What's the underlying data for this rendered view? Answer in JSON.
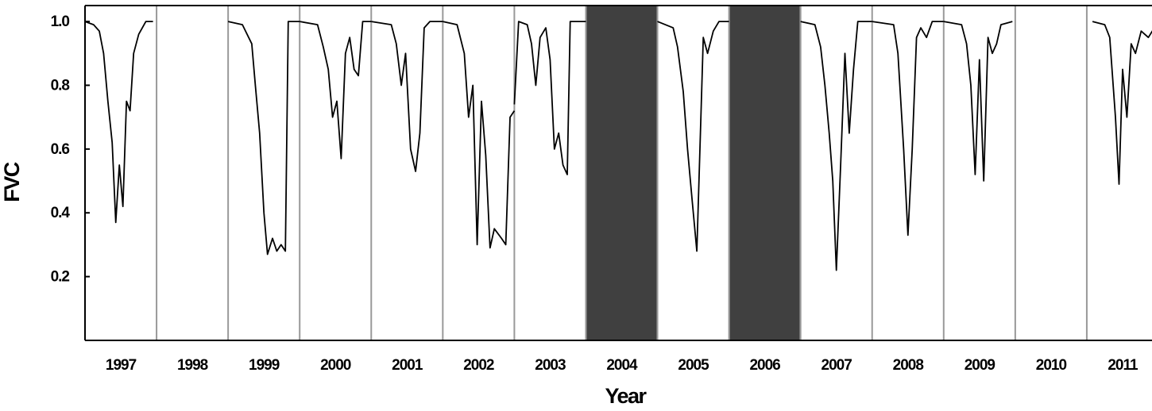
{
  "chart_data": {
    "type": "line",
    "title": "",
    "xlabel": "Year",
    "ylabel": "FVC",
    "categories": [
      "1997",
      "1998",
      "1999",
      "2000",
      "2001",
      "2002",
      "2003",
      "2004",
      "2005",
      "2006",
      "2007",
      "2008",
      "2009",
      "2010",
      "2011"
    ],
    "ylim": [
      0,
      1.05
    ],
    "yticks": [
      0.2,
      0.4,
      0.6,
      0.8,
      1.0
    ],
    "ytick_labels": [
      "0.2",
      "0.4",
      "0.6",
      "0.8",
      "1.0"
    ],
    "grid": "vertical separators between years",
    "legend": "none",
    "shaded_years": [
      "2004",
      "2006"
    ],
    "shade_color": "#404040",
    "line_color": "#000000",
    "separator_color": "#999999",
    "series": [
      {
        "values": [
          [
            [
              "1997",
              0.0,
              1.0
            ],
            [
              "1997",
              0.12,
              0.99
            ],
            [
              "1997",
              0.2,
              0.97
            ],
            [
              "1997",
              0.26,
              0.9
            ],
            [
              "1997",
              0.32,
              0.75
            ],
            [
              "1997",
              0.38,
              0.62
            ],
            [
              "1997",
              0.43,
              0.37
            ],
            [
              "1997",
              0.48,
              0.55
            ],
            [
              "1997",
              0.53,
              0.42
            ],
            [
              "1997",
              0.58,
              0.75
            ],
            [
              "1997",
              0.63,
              0.72
            ],
            [
              "1997",
              0.68,
              0.9
            ],
            [
              "1997",
              0.75,
              0.96
            ],
            [
              "1997",
              0.85,
              1.0
            ],
            [
              "1997",
              0.95,
              1.0
            ]
          ],
          [
            [
              "1999",
              0.0,
              1.0
            ],
            [
              "1999",
              0.2,
              0.99
            ],
            [
              "1999",
              0.33,
              0.93
            ],
            [
              "1999",
              0.38,
              0.8
            ],
            [
              "1999",
              0.44,
              0.65
            ],
            [
              "1999",
              0.5,
              0.4
            ],
            [
              "1999",
              0.55,
              0.27
            ],
            [
              "1999",
              0.62,
              0.32
            ],
            [
              "1999",
              0.68,
              0.28
            ],
            [
              "1999",
              0.74,
              0.3
            ],
            [
              "1999",
              0.8,
              0.28
            ],
            [
              "1999",
              0.84,
              1.0
            ],
            [
              "1999",
              1.0,
              1.0
            ]
          ],
          [
            [
              "2000",
              0.0,
              1.0
            ],
            [
              "2000",
              0.25,
              0.99
            ],
            [
              "2000",
              0.33,
              0.92
            ],
            [
              "2000",
              0.4,
              0.85
            ],
            [
              "2000",
              0.46,
              0.7
            ],
            [
              "2000",
              0.52,
              0.75
            ],
            [
              "2000",
              0.58,
              0.57
            ],
            [
              "2000",
              0.64,
              0.9
            ],
            [
              "2000",
              0.7,
              0.95
            ],
            [
              "2000",
              0.76,
              0.85
            ],
            [
              "2000",
              0.82,
              0.83
            ],
            [
              "2000",
              0.88,
              1.0
            ],
            [
              "2000",
              1.0,
              1.0
            ]
          ],
          [
            [
              "2001",
              0.0,
              1.0
            ],
            [
              "2001",
              0.28,
              0.99
            ],
            [
              "2001",
              0.35,
              0.93
            ],
            [
              "2001",
              0.42,
              0.8
            ],
            [
              "2001",
              0.48,
              0.9
            ],
            [
              "2001",
              0.55,
              0.6
            ],
            [
              "2001",
              0.62,
              0.53
            ],
            [
              "2001",
              0.68,
              0.65
            ],
            [
              "2001",
              0.74,
              0.98
            ],
            [
              "2001",
              0.82,
              1.0
            ],
            [
              "2001",
              1.0,
              1.0
            ]
          ],
          [
            [
              "2002",
              0.0,
              1.0
            ],
            [
              "2002",
              0.2,
              0.99
            ],
            [
              "2002",
              0.3,
              0.9
            ],
            [
              "2002",
              0.36,
              0.7
            ],
            [
              "2002",
              0.42,
              0.8
            ],
            [
              "2002",
              0.48,
              0.3
            ],
            [
              "2002",
              0.54,
              0.75
            ],
            [
              "2002",
              0.6,
              0.58
            ],
            [
              "2002",
              0.66,
              0.29
            ],
            [
              "2002",
              0.72,
              0.35
            ],
            [
              "2002",
              0.82,
              0.32
            ],
            [
              "2002",
              0.88,
              0.3
            ],
            [
              "2002",
              0.94,
              0.7
            ],
            [
              "2002",
              1.0,
              0.72
            ]
          ],
          [
            [
              "2003",
              0.0,
              0.74
            ],
            [
              "2003",
              0.06,
              1.0
            ],
            [
              "2003",
              0.18,
              0.99
            ],
            [
              "2003",
              0.24,
              0.93
            ],
            [
              "2003",
              0.3,
              0.8
            ],
            [
              "2003",
              0.36,
              0.95
            ],
            [
              "2003",
              0.44,
              0.98
            ],
            [
              "2003",
              0.5,
              0.88
            ],
            [
              "2003",
              0.56,
              0.6
            ],
            [
              "2003",
              0.62,
              0.65
            ],
            [
              "2003",
              0.68,
              0.55
            ],
            [
              "2003",
              0.74,
              0.52
            ],
            [
              "2003",
              0.78,
              1.0
            ],
            [
              "2003",
              1.0,
              1.0
            ]
          ],
          [
            [
              "2005",
              0.0,
              1.0
            ],
            [
              "2005",
              0.22,
              0.98
            ],
            [
              "2005",
              0.28,
              0.92
            ],
            [
              "2005",
              0.36,
              0.78
            ],
            [
              "2005",
              0.42,
              0.6
            ],
            [
              "2005",
              0.48,
              0.45
            ],
            [
              "2005",
              0.55,
              0.28
            ],
            [
              "2005",
              0.6,
              0.65
            ],
            [
              "2005",
              0.64,
              0.95
            ],
            [
              "2005",
              0.7,
              0.9
            ],
            [
              "2005",
              0.78,
              0.97
            ],
            [
              "2005",
              0.86,
              1.0
            ],
            [
              "2005",
              1.0,
              1.0
            ]
          ],
          [
            [
              "2007",
              0.0,
              1.0
            ],
            [
              "2007",
              0.2,
              0.99
            ],
            [
              "2007",
              0.28,
              0.92
            ],
            [
              "2007",
              0.34,
              0.8
            ],
            [
              "2007",
              0.4,
              0.65
            ],
            [
              "2007",
              0.45,
              0.5
            ],
            [
              "2007",
              0.5,
              0.22
            ],
            [
              "2007",
              0.56,
              0.55
            ],
            [
              "2007",
              0.62,
              0.9
            ],
            [
              "2007",
              0.68,
              0.65
            ],
            [
              "2007",
              0.74,
              0.85
            ],
            [
              "2007",
              0.8,
              1.0
            ],
            [
              "2007",
              1.0,
              1.0
            ]
          ],
          [
            [
              "2008",
              0.0,
              1.0
            ],
            [
              "2008",
              0.3,
              0.99
            ],
            [
              "2008",
              0.36,
              0.9
            ],
            [
              "2008",
              0.44,
              0.6
            ],
            [
              "2008",
              0.5,
              0.33
            ],
            [
              "2008",
              0.56,
              0.6
            ],
            [
              "2008",
              0.62,
              0.95
            ],
            [
              "2008",
              0.68,
              0.98
            ],
            [
              "2008",
              0.76,
              0.95
            ],
            [
              "2008",
              0.84,
              1.0
            ],
            [
              "2008",
              1.0,
              1.0
            ]
          ],
          [
            [
              "2009",
              0.0,
              1.0
            ],
            [
              "2009",
              0.25,
              0.99
            ],
            [
              "2009",
              0.32,
              0.93
            ],
            [
              "2009",
              0.38,
              0.8
            ],
            [
              "2009",
              0.44,
              0.52
            ],
            [
              "2009",
              0.5,
              0.88
            ],
            [
              "2009",
              0.56,
              0.5
            ],
            [
              "2009",
              0.62,
              0.95
            ],
            [
              "2009",
              0.68,
              0.9
            ],
            [
              "2009",
              0.74,
              0.93
            ],
            [
              "2009",
              0.8,
              0.99
            ],
            [
              "2009",
              0.96,
              1.0
            ]
          ],
          [
            [
              "2011",
              0.08,
              1.0
            ],
            [
              "2011",
              0.25,
              0.99
            ],
            [
              "2011",
              0.32,
              0.95
            ],
            [
              "2011",
              0.4,
              0.7
            ],
            [
              "2011",
              0.45,
              0.49
            ],
            [
              "2011",
              0.5,
              0.85
            ],
            [
              "2011",
              0.56,
              0.7
            ],
            [
              "2011",
              0.62,
              0.93
            ],
            [
              "2011",
              0.68,
              0.9
            ],
            [
              "2011",
              0.76,
              0.97
            ],
            [
              "2011",
              0.86,
              0.95
            ],
            [
              "2011",
              1.0,
              1.0
            ]
          ]
        ]
      }
    ]
  }
}
